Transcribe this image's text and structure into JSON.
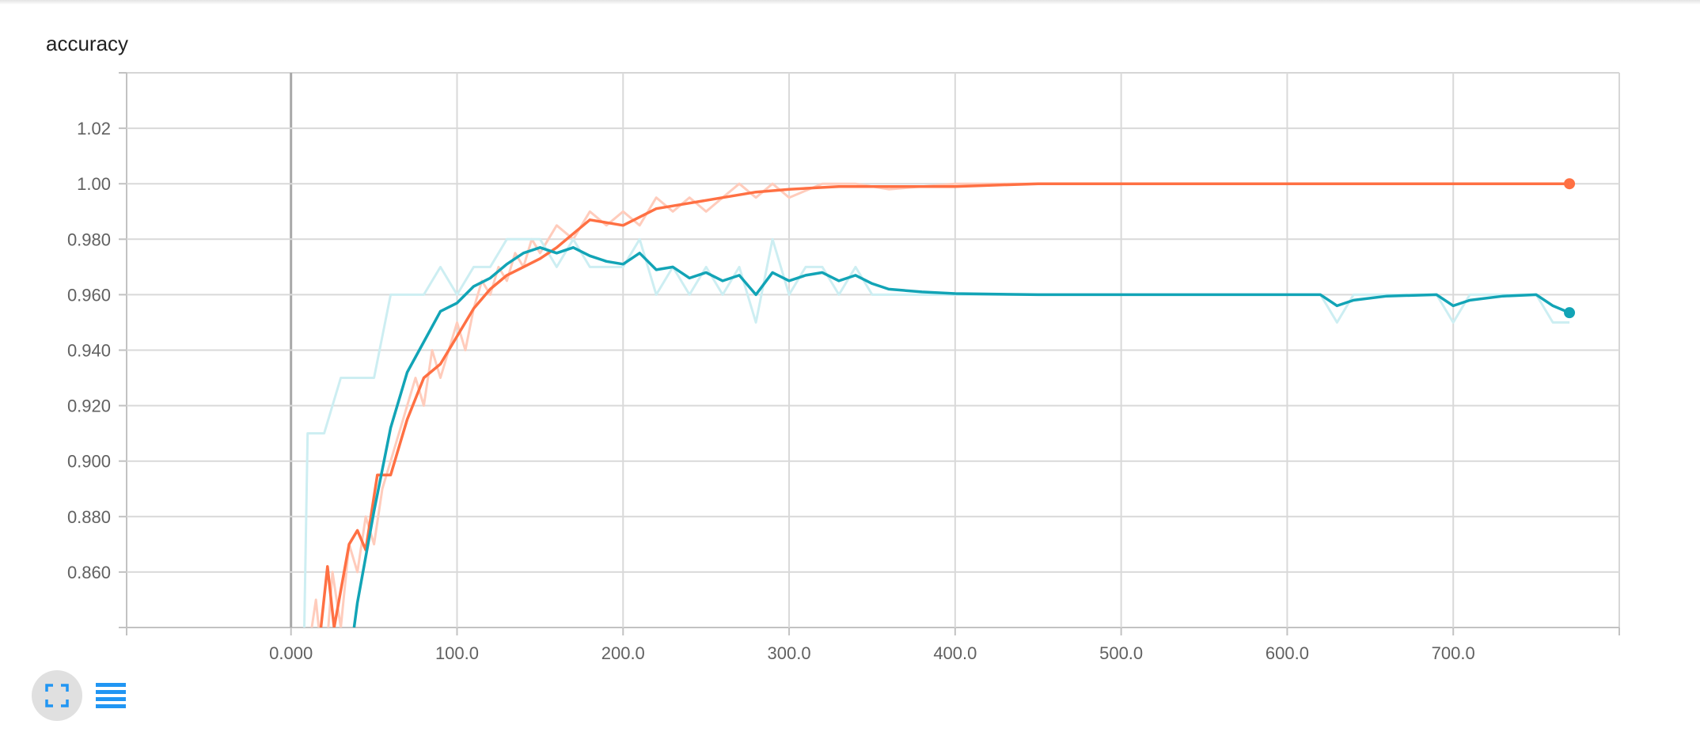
{
  "chart_data": {
    "type": "line",
    "title": "accuracy",
    "xlim": [
      -99,
      800
    ],
    "ylim": [
      0.84,
      1.04
    ],
    "x_ticks": [
      0,
      100,
      200,
      300,
      400,
      500,
      600,
      700
    ],
    "x_tick_labels": [
      "0.000",
      "100.0",
      "200.0",
      "300.0",
      "400.0",
      "500.0",
      "600.0",
      "700.0"
    ],
    "y_ticks": [
      0.86,
      0.88,
      0.9,
      0.92,
      0.94,
      0.96,
      0.98,
      1.0,
      1.02
    ],
    "y_tick_labels": [
      "0.860",
      "0.880",
      "0.900",
      "0.920",
      "0.940",
      "0.960",
      "0.980",
      "1.00",
      "1.02"
    ],
    "grid": true,
    "series": [
      {
        "color": "#ff7043",
        "raw_color": "#ffccbc",
        "raw": [
          [
            10,
            0.83
          ],
          [
            15,
            0.85
          ],
          [
            20,
            0.82
          ],
          [
            25,
            0.86
          ],
          [
            30,
            0.84
          ],
          [
            35,
            0.87
          ],
          [
            40,
            0.86
          ],
          [
            45,
            0.88
          ],
          [
            50,
            0.87
          ],
          [
            55,
            0.89
          ],
          [
            60,
            0.9
          ],
          [
            65,
            0.91
          ],
          [
            70,
            0.92
          ],
          [
            75,
            0.93
          ],
          [
            80,
            0.92
          ],
          [
            85,
            0.94
          ],
          [
            90,
            0.93
          ],
          [
            95,
            0.94
          ],
          [
            100,
            0.95
          ],
          [
            105,
            0.94
          ],
          [
            110,
            0.955
          ],
          [
            115,
            0.965
          ],
          [
            120,
            0.96
          ],
          [
            125,
            0.97
          ],
          [
            130,
            0.965
          ],
          [
            135,
            0.975
          ],
          [
            140,
            0.97
          ],
          [
            145,
            0.98
          ],
          [
            150,
            0.975
          ],
          [
            155,
            0.98
          ],
          [
            160,
            0.985
          ],
          [
            170,
            0.98
          ],
          [
            180,
            0.99
          ],
          [
            190,
            0.985
          ],
          [
            200,
            0.99
          ],
          [
            210,
            0.985
          ],
          [
            220,
            0.995
          ],
          [
            230,
            0.99
          ],
          [
            240,
            0.995
          ],
          [
            250,
            0.99
          ],
          [
            260,
            0.995
          ],
          [
            270,
            1.0
          ],
          [
            280,
            0.995
          ],
          [
            290,
            1.0
          ],
          [
            300,
            0.995
          ],
          [
            320,
            1.0
          ],
          [
            340,
            1.0
          ],
          [
            360,
            0.998
          ],
          [
            400,
            1.0
          ],
          [
            450,
            1.0
          ],
          [
            500,
            1.0
          ],
          [
            550,
            1.0
          ],
          [
            600,
            1.0
          ],
          [
            650,
            1.0
          ],
          [
            700,
            1.0
          ],
          [
            770,
            1.0
          ]
        ],
        "smoothed": [
          [
            18,
            0.84
          ],
          [
            22,
            0.862
          ],
          [
            26,
            0.84
          ],
          [
            35,
            0.87
          ],
          [
            40,
            0.875
          ],
          [
            45,
            0.868
          ],
          [
            52,
            0.895
          ],
          [
            60,
            0.895
          ],
          [
            70,
            0.915
          ],
          [
            80,
            0.93
          ],
          [
            90,
            0.935
          ],
          [
            100,
            0.945
          ],
          [
            110,
            0.955
          ],
          [
            120,
            0.962
          ],
          [
            130,
            0.967
          ],
          [
            140,
            0.97
          ],
          [
            150,
            0.973
          ],
          [
            160,
            0.977
          ],
          [
            170,
            0.982
          ],
          [
            180,
            0.987
          ],
          [
            190,
            0.986
          ],
          [
            200,
            0.985
          ],
          [
            210,
            0.988
          ],
          [
            220,
            0.991
          ],
          [
            240,
            0.993
          ],
          [
            260,
            0.995
          ],
          [
            280,
            0.997
          ],
          [
            300,
            0.998
          ],
          [
            330,
            0.999
          ],
          [
            360,
            0.999
          ],
          [
            400,
            0.999
          ],
          [
            450,
            1.0
          ],
          [
            500,
            1.0
          ],
          [
            550,
            1.0
          ],
          [
            600,
            1.0
          ],
          [
            650,
            1.0
          ],
          [
            700,
            1.0
          ],
          [
            770,
            1.0
          ]
        ]
      },
      {
        "color": "#12a4b6",
        "raw_color": "#cdeef2",
        "raw": [
          [
            8,
            0.84
          ],
          [
            10,
            0.91
          ],
          [
            20,
            0.91
          ],
          [
            30,
            0.93
          ],
          [
            40,
            0.93
          ],
          [
            50,
            0.93
          ],
          [
            60,
            0.96
          ],
          [
            70,
            0.96
          ],
          [
            80,
            0.96
          ],
          [
            90,
            0.97
          ],
          [
            100,
            0.96
          ],
          [
            110,
            0.97
          ],
          [
            120,
            0.97
          ],
          [
            130,
            0.98
          ],
          [
            140,
            0.98
          ],
          [
            150,
            0.98
          ],
          [
            160,
            0.97
          ],
          [
            170,
            0.98
          ],
          [
            180,
            0.97
          ],
          [
            190,
            0.97
          ],
          [
            200,
            0.97
          ],
          [
            210,
            0.98
          ],
          [
            220,
            0.96
          ],
          [
            230,
            0.97
          ],
          [
            240,
            0.96
          ],
          [
            250,
            0.97
          ],
          [
            260,
            0.96
          ],
          [
            270,
            0.97
          ],
          [
            280,
            0.95
          ],
          [
            290,
            0.98
          ],
          [
            300,
            0.96
          ],
          [
            310,
            0.97
          ],
          [
            320,
            0.97
          ],
          [
            330,
            0.96
          ],
          [
            340,
            0.97
          ],
          [
            350,
            0.96
          ],
          [
            360,
            0.96
          ],
          [
            400,
            0.96
          ],
          [
            500,
            0.96
          ],
          [
            600,
            0.96
          ],
          [
            620,
            0.96
          ],
          [
            630,
            0.95
          ],
          [
            640,
            0.96
          ],
          [
            690,
            0.96
          ],
          [
            700,
            0.95
          ],
          [
            710,
            0.96
          ],
          [
            750,
            0.96
          ],
          [
            760,
            0.95
          ],
          [
            770,
            0.95
          ]
        ],
        "smoothed": [
          [
            38,
            0.84
          ],
          [
            40,
            0.849
          ],
          [
            50,
            0.882
          ],
          [
            60,
            0.912
          ],
          [
            70,
            0.932
          ],
          [
            80,
            0.943
          ],
          [
            90,
            0.954
          ],
          [
            100,
            0.957
          ],
          [
            110,
            0.963
          ],
          [
            120,
            0.966
          ],
          [
            130,
            0.971
          ],
          [
            140,
            0.975
          ],
          [
            150,
            0.977
          ],
          [
            160,
            0.975
          ],
          [
            170,
            0.977
          ],
          [
            180,
            0.974
          ],
          [
            190,
            0.972
          ],
          [
            200,
            0.971
          ],
          [
            210,
            0.975
          ],
          [
            220,
            0.969
          ],
          [
            230,
            0.97
          ],
          [
            240,
            0.966
          ],
          [
            250,
            0.968
          ],
          [
            260,
            0.965
          ],
          [
            270,
            0.967
          ],
          [
            280,
            0.96
          ],
          [
            290,
            0.968
          ],
          [
            300,
            0.965
          ],
          [
            310,
            0.967
          ],
          [
            320,
            0.968
          ],
          [
            330,
            0.965
          ],
          [
            340,
            0.967
          ],
          [
            350,
            0.964
          ],
          [
            360,
            0.962
          ],
          [
            380,
            0.961
          ],
          [
            400,
            0.9604
          ],
          [
            450,
            0.96
          ],
          [
            500,
            0.96
          ],
          [
            600,
            0.96
          ],
          [
            620,
            0.96
          ],
          [
            630,
            0.956
          ],
          [
            640,
            0.958
          ],
          [
            660,
            0.9595
          ],
          [
            690,
            0.96
          ],
          [
            700,
            0.956
          ],
          [
            710,
            0.958
          ],
          [
            730,
            0.9595
          ],
          [
            750,
            0.96
          ],
          [
            760,
            0.956
          ],
          [
            770,
            0.9535
          ]
        ]
      }
    ]
  },
  "toolbar": {
    "expand_icon": "fullscreen-icon",
    "legend_icon": "menu-icon",
    "accent": "#2196f3"
  }
}
